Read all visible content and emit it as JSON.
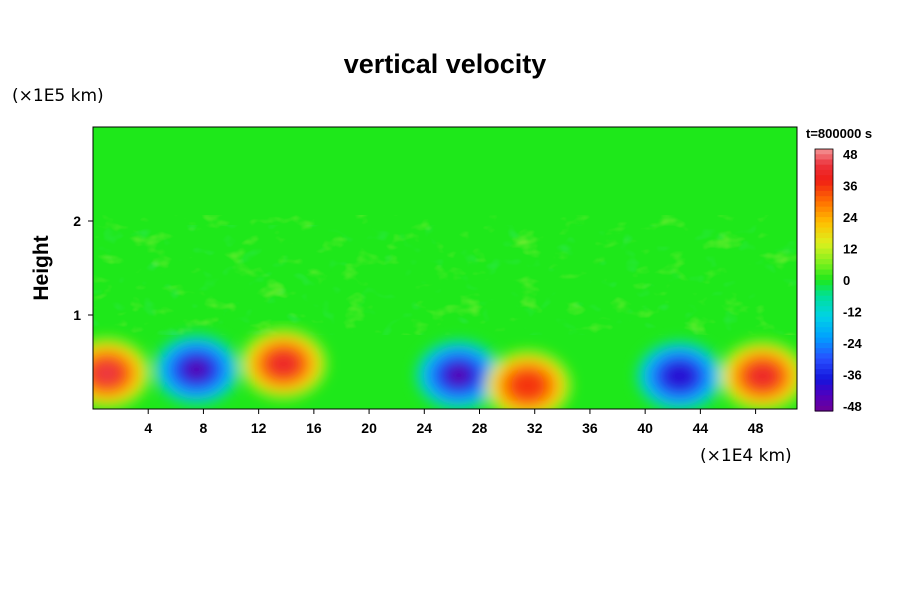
{
  "chart_data": {
    "type": "heatmap",
    "title": "vertical velocity",
    "ylabel": "Height",
    "x_unit": "(×1E4 km)",
    "y_unit": "(×1E5 km)",
    "time_label": "t=800000 s",
    "xlim": [
      0,
      51
    ],
    "ylim": [
      0,
      3
    ],
    "x_ticks": [
      4,
      8,
      12,
      16,
      20,
      24,
      28,
      32,
      36,
      40,
      44,
      48
    ],
    "y_ticks": [
      1,
      2
    ],
    "colorbar": {
      "range": [
        -50,
        50
      ],
      "ticks": [
        48,
        36,
        24,
        12,
        0,
        -12,
        -24,
        -36,
        -48
      ]
    },
    "features": [
      {
        "x": 1.0,
        "y": 0.38,
        "value": 45
      },
      {
        "x": 7.5,
        "y": 0.42,
        "value": -48
      },
      {
        "x": 13.8,
        "y": 0.48,
        "value": 42
      },
      {
        "x": 26.5,
        "y": 0.36,
        "value": -48
      },
      {
        "x": 31.5,
        "y": 0.25,
        "value": 36
      },
      {
        "x": 42.5,
        "y": 0.35,
        "value": -40
      },
      {
        "x": 48.5,
        "y": 0.35,
        "value": 42
      }
    ]
  }
}
